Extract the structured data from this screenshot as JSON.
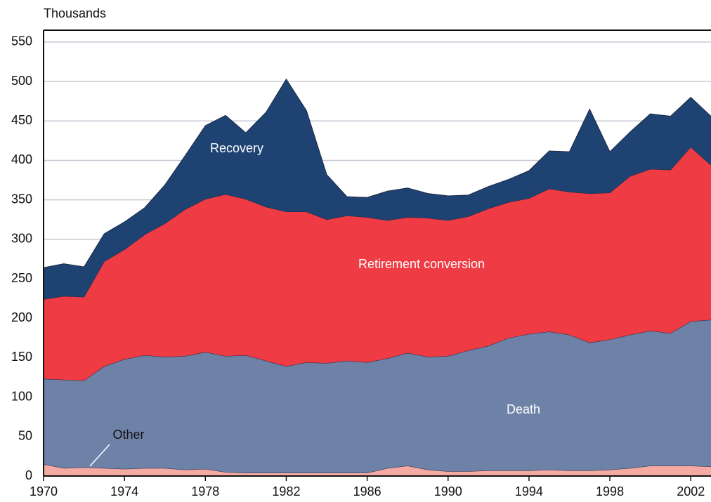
{
  "chart_data": {
    "type": "stacked_area",
    "y_label": "Thousands",
    "x": [
      1970,
      1971,
      1972,
      1973,
      1974,
      1975,
      1976,
      1977,
      1978,
      1979,
      1980,
      1981,
      1982,
      1983,
      1984,
      1985,
      1986,
      1987,
      1988,
      1989,
      1990,
      1991,
      1992,
      1993,
      1994,
      1995,
      1996,
      1997,
      1998,
      1999,
      2000,
      2001,
      2002,
      2003
    ],
    "xlim": [
      1970,
      2003
    ],
    "xticks": [
      1970,
      1974,
      1978,
      1982,
      1986,
      1990,
      1994,
      1998,
      2002
    ],
    "ylim": [
      0,
      565
    ],
    "yticks": [
      0,
      50,
      100,
      150,
      200,
      250,
      300,
      350,
      400,
      450,
      500,
      550
    ],
    "grid": true,
    "series": [
      {
        "name": "Other",
        "color": "#f4a9a2",
        "values": [
          15,
          10,
          11,
          10,
          9,
          10,
          10,
          8,
          9,
          5,
          4,
          4,
          4,
          4,
          4,
          4,
          4,
          10,
          13,
          8,
          6,
          6,
          7,
          7,
          7,
          8,
          7,
          7,
          8,
          10,
          13,
          13,
          13,
          12
        ]
      },
      {
        "name": "Death",
        "color": "#6e82a8",
        "values": [
          108,
          112,
          110,
          129,
          139,
          143,
          141,
          144,
          148,
          147,
          149,
          142,
          135,
          140,
          139,
          142,
          140,
          139,
          143,
          143,
          146,
          153,
          158,
          168,
          173,
          175,
          172,
          162,
          165,
          169,
          171,
          168,
          183,
          186
        ]
      },
      {
        "name": "Retirement conversion",
        "color": "#ef3b43",
        "values": [
          101,
          106,
          106,
          133,
          139,
          153,
          169,
          186,
          194,
          205,
          198,
          195,
          196,
          191,
          182,
          184,
          184,
          175,
          172,
          176,
          172,
          170,
          174,
          172,
          172,
          181,
          181,
          189,
          186,
          201,
          205,
          207,
          221,
          196
        ]
      },
      {
        "name": "Recovery",
        "color": "#1e4373",
        "values": [
          40,
          41,
          38,
          35,
          35,
          34,
          49,
          68,
          93,
          100,
          84,
          120,
          168,
          128,
          57,
          24,
          25,
          37,
          37,
          31,
          31,
          27,
          28,
          29,
          35,
          48,
          51,
          107,
          52,
          56,
          70,
          68,
          63,
          62
        ]
      }
    ]
  }
}
